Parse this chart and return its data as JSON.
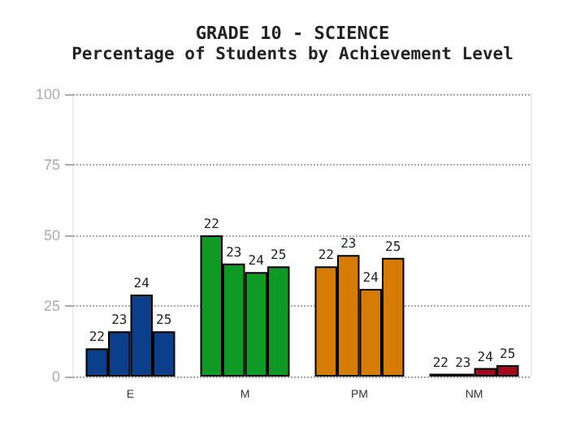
{
  "chart_data": {
    "type": "bar",
    "title": "GRADE 10 - SCIENCE",
    "subtitle": "Percentage of Students by Achievement Level",
    "categories": [
      "E",
      "M",
      "PM",
      "NM"
    ],
    "series": [
      {
        "name": "22",
        "colors": [
          "#0b3f8c",
          "#0f9a26",
          "#d67c06",
          "#a10a1e"
        ],
        "values": [
          10,
          50,
          39,
          1
        ]
      },
      {
        "name": "23",
        "colors": [
          "#0b3f8c",
          "#0f9a26",
          "#d67c06",
          "#a10a1e"
        ],
        "values": [
          16,
          40,
          43,
          1
        ]
      },
      {
        "name": "24",
        "colors": [
          "#0b3f8c",
          "#0f9a26",
          "#d67c06",
          "#a10a1e"
        ],
        "values": [
          29,
          37,
          31,
          3
        ]
      },
      {
        "name": "25",
        "colors": [
          "#0b3f8c",
          "#0f9a26",
          "#d67c06",
          "#a10a1e"
        ],
        "values": [
          16,
          39,
          42,
          4
        ]
      }
    ],
    "ylim": [
      0,
      100
    ],
    "yticks": [
      0,
      25,
      50,
      75,
      100
    ],
    "grid": "y",
    "legend": false
  }
}
